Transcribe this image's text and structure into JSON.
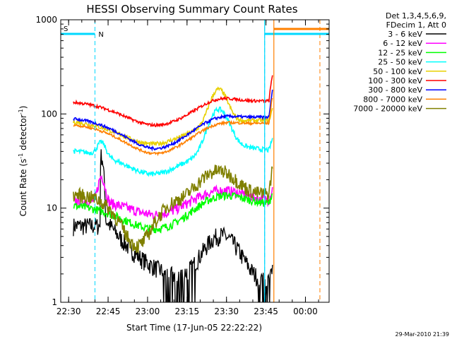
{
  "chart_data": {
    "type": "line",
    "title": "HESSI Observing Summary Count Rates",
    "xlabel": "Start Time (17-Jun-05 22:22:22)",
    "ylabel_main": "Count Rate (s",
    "ylabel_sup1": "-1",
    "ylabel_mid": " detector",
    "ylabel_sup2": "-1",
    "ylabel_end": ")",
    "y_scale": "log",
    "ylim": [
      1,
      1000
    ],
    "xlim_minutes": [
      -3.0,
      99.0
    ],
    "x_tick_labels": [
      "22:30",
      "22:45",
      "23:00",
      "23:15",
      "23:30",
      "23:45",
      "00:00"
    ],
    "y_tick_labels": [
      "1",
      "10",
      "100",
      "1000"
    ],
    "legend_header": [
      "Det 1,3,4,5,6,9,",
      "FDecim 1, Att 0"
    ],
    "legend_placement": "top-right, outside plot",
    "markers": [
      {
        "label": "S",
        "time": "22:27",
        "color": "#ff8000"
      },
      {
        "label": "N",
        "time": "22:40",
        "color": "#00d8ff"
      }
    ],
    "timestamp": "29-Mar-2010 21:39",
    "series": [
      {
        "name": "3 - 6 keV",
        "color": "#000000"
      },
      {
        "name": "6 - 12 keV",
        "color": "#ff00ff"
      },
      {
        "name": "12 - 25 keV",
        "color": "#00ff00"
      },
      {
        "name": "25 - 50 keV",
        "color": "#00ffff"
      },
      {
        "name": "50 - 100 keV",
        "color": "#e8d000"
      },
      {
        "name": "100 - 300 keV",
        "color": "#ff0000"
      },
      {
        "name": "300 - 800 keV",
        "color": "#0000ff"
      },
      {
        "name": "800 - 7000 keV",
        "color": "#ff8000"
      },
      {
        "name": "7000 - 20000 keV",
        "color": "#808000"
      }
    ]
  }
}
